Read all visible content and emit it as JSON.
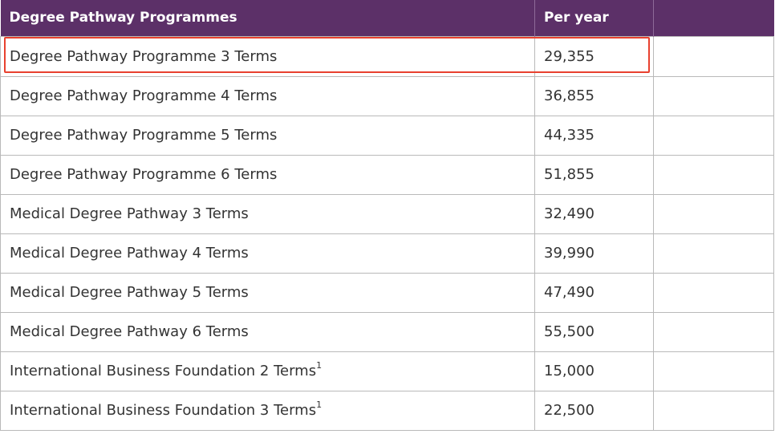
{
  "table": {
    "headers": [
      "Degree Pathway Programmes",
      "Per year",
      ""
    ],
    "rows": [
      {
        "programme": "Degree Pathway Programme 3 Terms",
        "sup": "",
        "fee": "29,355",
        "extra": ""
      },
      {
        "programme": "Degree Pathway Programme 4 Terms",
        "sup": "",
        "fee": "36,855",
        "extra": ""
      },
      {
        "programme": "Degree Pathway Programme 5 Terms",
        "sup": "",
        "fee": "44,335",
        "extra": ""
      },
      {
        "programme": "Degree Pathway Programme 6 Terms",
        "sup": "",
        "fee": "51,855",
        "extra": ""
      },
      {
        "programme": "Medical Degree Pathway 3 Terms",
        "sup": "",
        "fee": "32,490",
        "extra": ""
      },
      {
        "programme": "Medical Degree Pathway 4 Terms",
        "sup": "",
        "fee": "39,990",
        "extra": ""
      },
      {
        "programme": "Medical Degree Pathway 5 Terms",
        "sup": "",
        "fee": "47,490",
        "extra": ""
      },
      {
        "programme": "Medical Degree Pathway 6 Terms",
        "sup": "",
        "fee": "55,500",
        "extra": ""
      },
      {
        "programme": "International Business Foundation 2 Terms",
        "sup": "1",
        "fee": "15,000",
        "extra": ""
      },
      {
        "programme": "International Business Foundation 3 Terms",
        "sup": "1",
        "fee": "22,500",
        "extra": ""
      }
    ]
  },
  "colors": {
    "header_bg": "#5c3068",
    "highlight": "#e8412f"
  }
}
